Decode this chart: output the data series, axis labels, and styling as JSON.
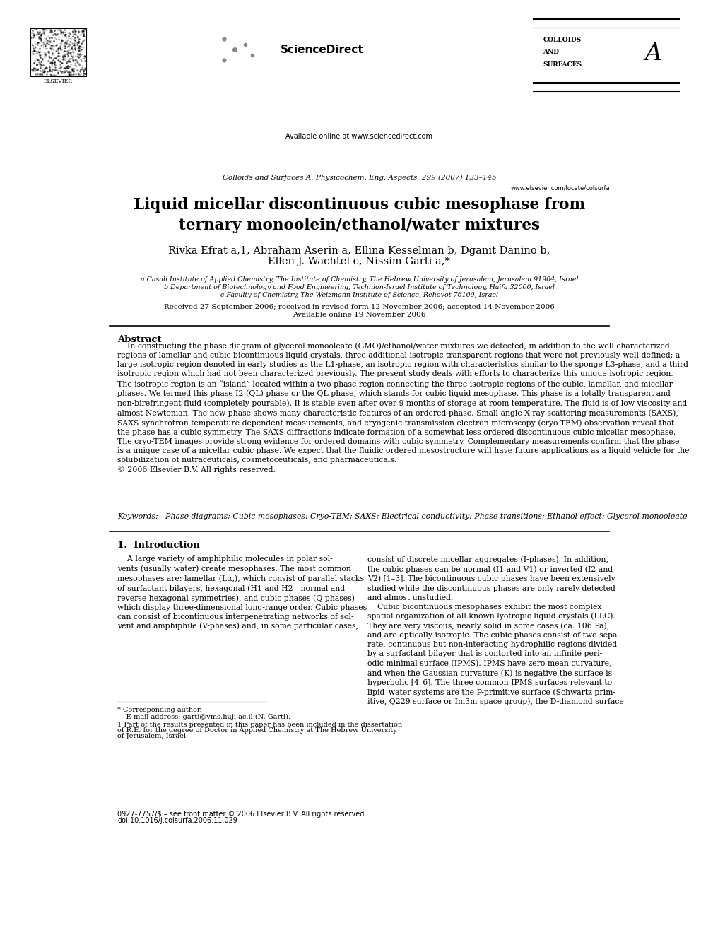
{
  "bg_color": "#ffffff",
  "page_width": 9.92,
  "page_height": 13.23,
  "header": {
    "available_online": "Available online at www.sciencedirect.com",
    "journal_name": "Colloids and Surfaces A: Physicochem. Eng. Aspects  299 (2007) 133–145",
    "url": "www.elsevier.com/locate/colsurfa"
  },
  "title": "Liquid micellar discontinuous cubic mesophase from\nternary monoolein/ethanol/water mixtures",
  "authors_line1": "Rivka Efrat a,1, Abraham Aserin a, Ellina Kesselman b, Dganit Danino b,",
  "authors_line2": "Ellen J. Wachtel c, Nissim Garti a,*",
  "affil_a": "a Casali Institute of Applied Chemistry, The Institute of Chemistry, The Hebrew University of Jerusalem, Jerusalem 91904, Israel",
  "affil_b": "b Department of Biotechnology and Food Engineering, Technion-Israel Institute of Technology, Haifa 32000, Israel",
  "affil_c": "c Faculty of Chemistry, The Weizmann Institute of Science, Rehovot 76100, Israel",
  "received": "Received 27 September 2006; received in revised form 12 November 2006; accepted 14 November 2006",
  "available": "Available online 19 November 2006",
  "abstract_title": "Abstract",
  "abstract_text": "    In constructing the phase diagram of glycerol monooleate (GMO)/ethanol/water mixtures we detected, in addition to the well-characterized\nregions of lamellar and cubic bicontinuous liquid crystals, three additional isotropic transparent regions that were not previously well-defined; a\nlarge isotropic region denoted in early studies as the L1-phase, an isotropic region with characteristics similar to the sponge L3-phase, and a third\nisotropic region which had not been characterized previously. The present study deals with efforts to characterize this unique isotropic region.\nThe isotropic region is an “island” located within a two phase region connecting the three isotropic regions of the cubic, lamellar, and micellar\nphases. We termed this phase I2 (QL) phase or the QL phase, which stands for cubic liquid mesophase. This phase is a totally transparent and\nnon-birefringent fluid (completely pourable). It is stable even after over 9 months of storage at room temperature. The fluid is of low viscosity and\nalmost Newtonian. The new phase shows many characteristic features of an ordered phase. Small-angle X-ray scattering measurements (SAXS),\nSAXS-synchrotron temperature-dependent measurements, and cryogenic-transmission electron microscopy (cryo-TEM) observation reveal that\nthe phase has a cubic symmetry. The SAXS diffractions indicate formation of a somewhat less ordered discontinuous cubic micellar mesophase.\nThe cryo-TEM images provide strong evidence for ordered domains with cubic symmetry. Complementary measurements confirm that the phase\nis a unique case of a micellar cubic phase. We expect that the fluidic ordered mesostructure will have future applications as a liquid vehicle for the\nsolubilization of nutraceuticals, cosmetoceuticals, and pharmaceuticals.\n© 2006 Elsevier B.V. All rights reserved.",
  "keywords": "Keywords:   Phase diagrams; Cubic mesophases; Cryo-TEM; SAXS; Electrical conductivity; Phase transitions; Ethanol effect; Glycerol monooleate",
  "section1_title": "1.  Introduction",
  "intro_col1": "    A large variety of amphiphilic molecules in polar sol-\nvents (usually water) create mesophases. The most common\nmesophases are: lamellar (Lα,), which consist of parallel stacks\nof surfactant bilayers, hexagonal (H1 and H2—normal and\nreverse hexagonal symmetries), and cubic phases (Q phases)\nwhich display three-dimensional long-range order. Cubic phases\ncan consist of bicontinuous interpenetrating networks of sol-\nvent and amphiphile (V-phases) and, in some particular cases,",
  "intro_col2": "consist of discrete micellar aggregates (I-phases). In addition,\nthe cubic phases can be normal (I1 and V1) or inverted (I2 and\nV2) [1–3]. The bicontinuous cubic phases have been extensively\nstudied while the discontinuous phases are only rarely detected\nand almost unstudied.\n    Cubic bicontinuous mesophases exhibit the most complex\nspatial organization of all known lyotropic liquid crystals (LLC).\nThey are very viscous, nearly solid in some cases (ca. 106 Pa),\nand are optically isotropic. The cubic phases consist of two sepa-\nrate, continuous but non-interacting hydrophilic regions divided\nby a surfactant bilayer that is contorted into an infinite peri-\nodic minimal surface (IPMS). IPMS have zero mean curvature,\nand when the Gaussian curvature (K) is negative the surface is\nhyperbolic [4–6]. The three common IPMS surfaces relevant to\nlipid–water systems are the P-primitive surface (Schwartz prim-\nitive, Q229 surface or Im3m space group), the D-diamond surface",
  "footnote_star": "* Corresponding author.",
  "footnote_email": "    E-mail address: garti@vms.huji.ac.il (N. Garti).",
  "footnote_1a": "1 Part of the results presented in this paper has been included in the dissertation",
  "footnote_1b": "of R.E. for the degree of Doctor in Applied Chemistry at The Hebrew University",
  "footnote_1c": "of Jerusalem, Israel.",
  "footer_issn": "0927-7757/$ – see front matter © 2006 Elsevier B.V. All rights reserved.",
  "footer_doi": "doi:10.1016/j.colsurfa.2006.11.029"
}
